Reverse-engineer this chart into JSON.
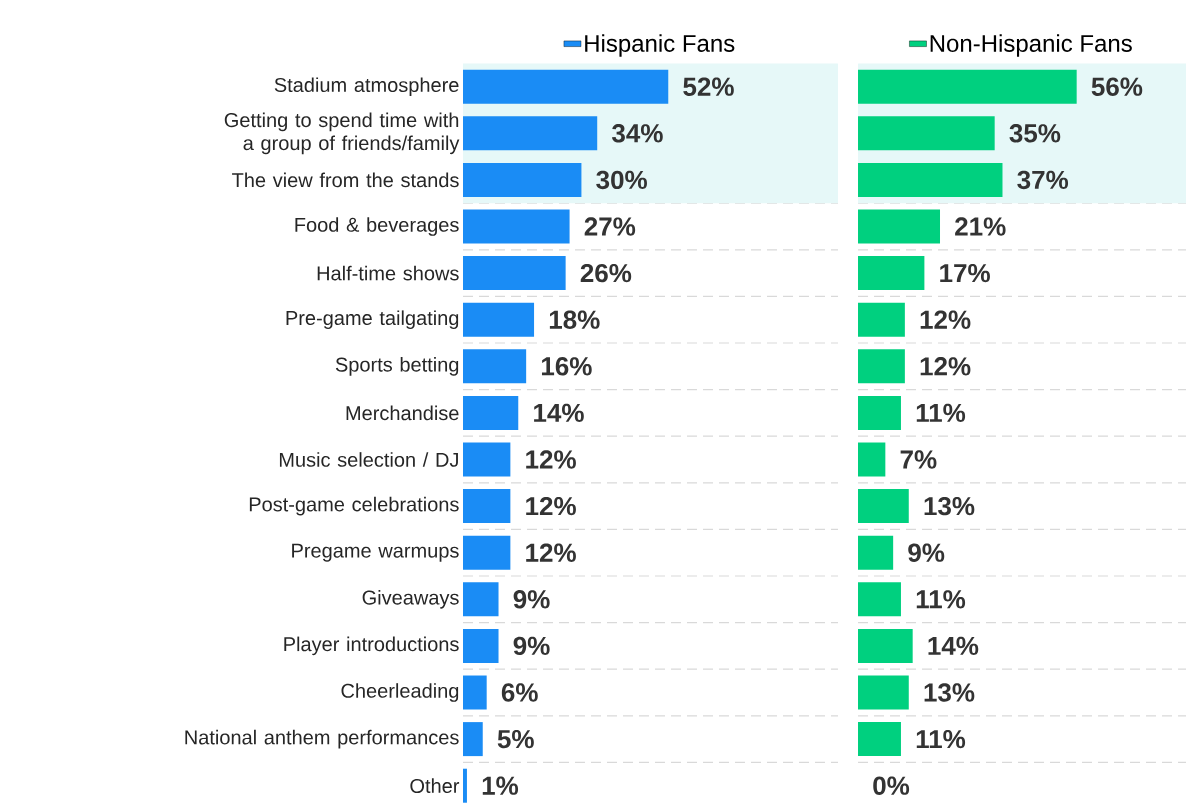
{
  "chart_data": [
    {
      "type": "bar",
      "orientation": "horizontal",
      "categories": [
        "Stadium atmosphere",
        "Getting to spend time with a group of friends/family",
        "The view from the stands",
        "Food & beverages",
        "Half-time shows",
        "Pre-game tailgating",
        "Sports betting",
        "Merchandise",
        "Music selection / DJ",
        "Post-game celebrations",
        "Pregame warmups",
        "Giveaways",
        "Player introductions",
        "Cheerleading",
        "National anthem performances",
        "Other"
      ],
      "series": [
        {
          "name": "Hispanic Fans",
          "color": "#1a8cf5",
          "values": [
            52,
            34,
            30,
            27,
            26,
            18,
            16,
            14,
            12,
            12,
            12,
            9,
            9,
            6,
            5,
            1
          ],
          "value_labels": [
            "52%",
            "34%",
            "30%",
            "27%",
            "26%",
            "18%",
            "16%",
            "14%",
            "12%",
            "12%",
            "12%",
            "9%",
            "9%",
            "6%",
            "5%",
            "1%"
          ]
        }
      ],
      "xlim": [
        0,
        95
      ],
      "tick_labels": "y",
      "grid": "y",
      "legend": "top",
      "bands": [
        {
          "axis": "y",
          "from": "Stadium atmosphere",
          "to": "The view from the stands",
          "color": "#e6f8f8"
        }
      ]
    },
    {
      "type": "bar",
      "orientation": "horizontal",
      "categories": [
        "Stadium atmosphere",
        "Getting to spend time with a group of friends/family",
        "The view from the stands",
        "Food & beverages",
        "Half-time shows",
        "Pre-game tailgating",
        "Sports betting",
        "Merchandise",
        "Music selection / DJ",
        "Post-game celebrations",
        "Pregame warmups",
        "Giveaways",
        "Player introductions",
        "Cheerleading",
        "National anthem performances",
        "Other"
      ],
      "series": [
        {
          "name": "Non-Hispanic Fans",
          "color": "#00d07f",
          "values": [
            56,
            35,
            37,
            21,
            17,
            12,
            12,
            11,
            7,
            13,
            9,
            11,
            14,
            13,
            11,
            0
          ],
          "value_labels": [
            "56%",
            "35%",
            "37%",
            "21%",
            "17%",
            "12%",
            "12%",
            "11%",
            "7%",
            "13%",
            "9%",
            "11%",
            "14%",
            "13%",
            "11%",
            "0%"
          ]
        }
      ],
      "xlim": [
        0,
        84
      ],
      "tick_labels": false,
      "grid": "y",
      "legend": "top",
      "bands": [
        {
          "axis": "y",
          "from": "Stadium atmosphere",
          "to": "The view from the stands",
          "color": "#e6f8f8"
        }
      ]
    }
  ]
}
